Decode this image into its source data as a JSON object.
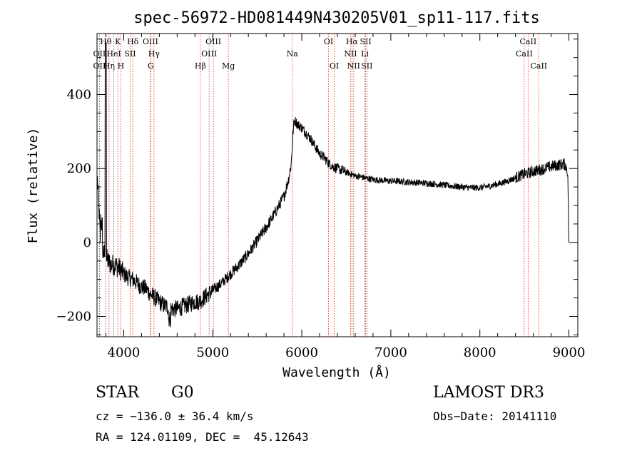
{
  "chart_data": {
    "type": "line",
    "title": "spec-56972-HD081449N430205V01_sp11-117.fits",
    "xlabel": "Wavelength (Å)",
    "ylabel": "Flux (relative)",
    "xlim": [
      3700,
      9100
    ],
    "ylim": [
      -255,
      565
    ],
    "x_ticks": [
      4000,
      5000,
      6000,
      7000,
      8000,
      9000
    ],
    "y_ticks": [
      -200,
      0,
      200,
      400
    ],
    "grid": false,
    "series": [
      {
        "name": "flux",
        "x": [
          3705,
          3740,
          3780,
          3820,
          3860,
          3900,
          3950,
          4000,
          4050,
          4100,
          4150,
          4200,
          4250,
          4300,
          4350,
          4400,
          4450,
          4500,
          4550,
          4600,
          4650,
          4700,
          4750,
          4800,
          4850,
          4900,
          4950,
          5000,
          5100,
          5200,
          5300,
          5400,
          5500,
          5600,
          5700,
          5800,
          5850,
          5880,
          5900,
          5910,
          5920,
          5950,
          6000,
          6050,
          6100,
          6150,
          6200,
          6250,
          6300,
          6350,
          6400,
          6450,
          6500,
          6550,
          6600,
          6650,
          6700,
          6800,
          6900,
          7000,
          7100,
          7200,
          7300,
          7400,
          7500,
          7600,
          7700,
          7800,
          7900,
          8000,
          8100,
          8200,
          8300,
          8400,
          8500,
          8550,
          8600,
          8650,
          8700,
          8750,
          8800,
          8850,
          8900,
          8950,
          8980,
          8990,
          9000
        ],
        "y": [
          170,
          0,
          -30,
          -50,
          -60,
          -60,
          -70,
          -85,
          -95,
          -100,
          -110,
          -120,
          -125,
          -140,
          -150,
          -160,
          -170,
          -175,
          -180,
          -180,
          -175,
          -170,
          -165,
          -160,
          -160,
          -150,
          -140,
          -130,
          -110,
          -85,
          -60,
          -30,
          5,
          40,
          80,
          125,
          170,
          210,
          290,
          320,
          330,
          320,
          310,
          295,
          280,
          260,
          240,
          230,
          215,
          205,
          200,
          195,
          190,
          185,
          180,
          178,
          175,
          170,
          168,
          166,
          165,
          163,
          162,
          160,
          158,
          155,
          152,
          150,
          148,
          148,
          152,
          158,
          165,
          175,
          185,
          188,
          192,
          195,
          198,
          202,
          205,
          208,
          210,
          212,
          200,
          160,
          0
        ]
      }
    ],
    "line_markers": [
      {
        "label": "OII",
        "x": 3727,
        "row": 3
      },
      {
        "label": "Hθ",
        "x": 3798,
        "row": 1
      },
      {
        "label": "OII",
        "x": 3727,
        "row": 2
      },
      {
        "label": "Hη",
        "x": 3835,
        "row": 3
      },
      {
        "label": "HeI",
        "x": 3889,
        "row": 2
      },
      {
        "label": "K",
        "x": 3934,
        "row": 1
      },
      {
        "label": "H",
        "x": 3968,
        "row": 3
      },
      {
        "label": "SII",
        "x": 4072,
        "row": 2
      },
      {
        "label": "Hδ",
        "x": 4102,
        "row": 1
      },
      {
        "label": "OIII",
        "x": 4300,
        "row": 1
      },
      {
        "label": "Hγ",
        "x": 4340,
        "row": 2
      },
      {
        "label": "G",
        "x": 4304,
        "row": 3
      },
      {
        "label": "Hβ",
        "x": 4861,
        "row": 3
      },
      {
        "label": "OIII",
        "x": 4959,
        "row": 2
      },
      {
        "label": "OIII",
        "x": 5007,
        "row": 1
      },
      {
        "label": "Mg",
        "x": 5175,
        "row": 3
      },
      {
        "label": "Na",
        "x": 5893,
        "row": 2
      },
      {
        "label": "OI",
        "x": 6300,
        "row": 1
      },
      {
        "label": "OI",
        "x": 6364,
        "row": 3
      },
      {
        "label": "Hα",
        "x": 6563,
        "row": 1
      },
      {
        "label": "NII",
        "x": 6548,
        "row": 2
      },
      {
        "label": "NII",
        "x": 6583,
        "row": 3
      },
      {
        "label": "SII",
        "x": 6717,
        "row": 1
      },
      {
        "label": "Li",
        "x": 6708,
        "row": 2
      },
      {
        "label": "SII",
        "x": 6731,
        "row": 3
      },
      {
        "label": "CaII",
        "x": 8542,
        "row": 1
      },
      {
        "label": "CaII",
        "x": 8498,
        "row": 2
      },
      {
        "label": "CaII",
        "x": 8662,
        "row": 3
      }
    ]
  },
  "info": {
    "object_class": "STAR",
    "subclass": "G0",
    "survey": "LAMOST DR3",
    "redshift": "cz = −136.0 ± 36.4 km/s",
    "obs_date": "Obs−Date: 20141110",
    "coords": "RA = 124.01109, DEC =  45.12643"
  }
}
